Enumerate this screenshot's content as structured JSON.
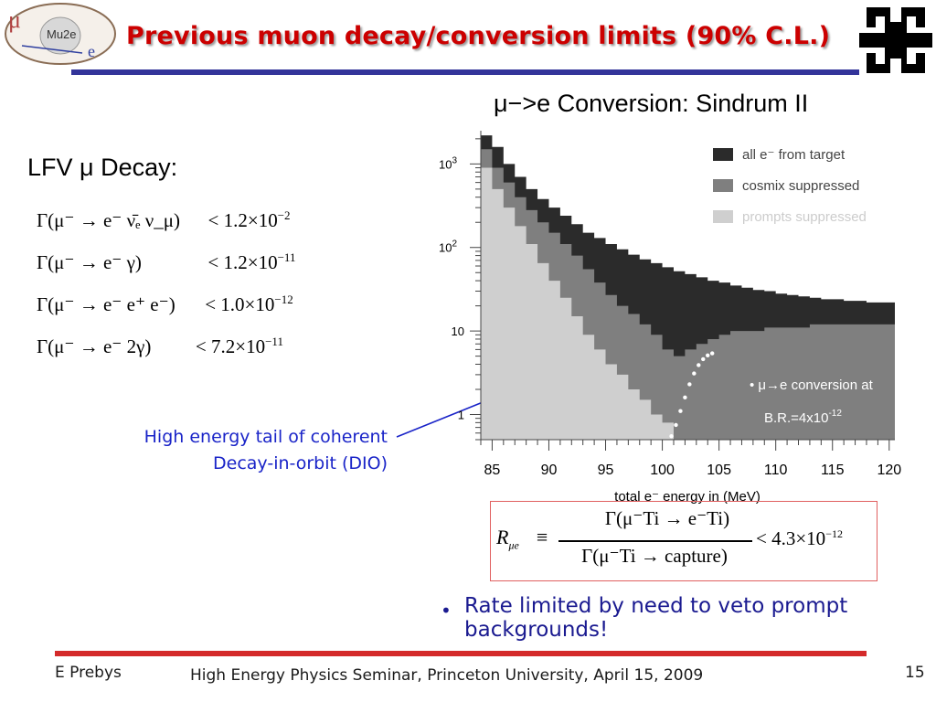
{
  "slide": {
    "title": "Previous muon decay/conversion limits (90% C.L.)",
    "logo_text": "Mu2e",
    "subtitle": "μ−>e Conversion: Sindrum II",
    "lfv_heading": "LFV μ Decay:",
    "limits": [
      {
        "process": "Γ(μ⁻ → e⁻ ν̄ₑ ν_μ)",
        "mantissa": "< 1.2×10",
        "exponent": "−2"
      },
      {
        "process": "Γ(μ⁻ → e⁻ γ)",
        "mantissa": "< 1.2×10",
        "exponent": "−11"
      },
      {
        "process": "Γ(μ⁻ → e⁻ e⁺ e⁻)",
        "mantissa": "< 1.0×10",
        "exponent": "−12"
      },
      {
        "process": "Γ(μ⁻ → e⁻ 2γ)",
        "mantissa": "< 7.2×10",
        "exponent": "−11"
      }
    ],
    "annotation_line1": "High energy tail of coherent",
    "annotation_line2": "Decay-in-orbit (DIO)",
    "formula": {
      "lhs": "R",
      "lhs_sub": "μe",
      "equiv": "≡",
      "numerator": "Γ(μ⁻Ti → e⁻Ti)",
      "denominator": "Γ(μ⁻Ti → capture)",
      "rhs_mantissa": "< 4.3×10",
      "rhs_exponent": "−12"
    },
    "bullet": "Rate limited by need to veto prompt backgrounds!",
    "footer_left": "E Prebys",
    "footer_center": "High Energy Physics Seminar, Princeton University, April 15, 2009",
    "page_number": "15",
    "colors": {
      "title": "#cc0000",
      "title_rule": "#33349a",
      "footer_rule": "#d42a2a",
      "annotation": "#1a24c8",
      "bullet": "#1a1a90"
    }
  },
  "chart_data": {
    "type": "area",
    "xlabel": "total e⁻ energy in (MeV)",
    "xlim": [
      84,
      120.5
    ],
    "x_ticks": [
      85,
      90,
      95,
      100,
      105,
      110,
      115,
      120
    ],
    "y_scale": "log",
    "ylim": [
      0.5,
      2500
    ],
    "y_tick_labels": [
      {
        "value": 1000,
        "label": "10",
        "sup": "3"
      },
      {
        "value": 100,
        "label": "10",
        "sup": "2"
      },
      {
        "value": 10,
        "label": "10",
        "sup": ""
      },
      {
        "value": 1,
        "label": "1",
        "sup": ""
      }
    ],
    "legend_position": "top-right",
    "series": [
      {
        "name": "all e⁻ from target",
        "color": "#2b2b2b",
        "points": [
          [
            84,
            2200
          ],
          [
            85,
            1600
          ],
          [
            86,
            1000
          ],
          [
            87,
            700
          ],
          [
            88,
            500
          ],
          [
            89,
            380
          ],
          [
            90,
            300
          ],
          [
            91,
            240
          ],
          [
            92,
            190
          ],
          [
            93,
            150
          ],
          [
            94,
            130
          ],
          [
            95,
            110
          ],
          [
            96,
            95
          ],
          [
            97,
            82
          ],
          [
            98,
            72
          ],
          [
            99,
            65
          ],
          [
            100,
            58
          ],
          [
            101,
            52
          ],
          [
            102,
            48
          ],
          [
            103,
            44
          ],
          [
            104,
            40
          ],
          [
            105,
            38
          ],
          [
            106,
            35
          ],
          [
            107,
            33
          ],
          [
            108,
            31
          ],
          [
            109,
            30
          ],
          [
            110,
            28
          ],
          [
            111,
            27
          ],
          [
            112,
            26
          ],
          [
            113,
            25
          ],
          [
            114,
            24
          ],
          [
            115,
            24
          ],
          [
            116,
            23
          ],
          [
            117,
            23
          ],
          [
            118,
            22
          ],
          [
            119,
            22
          ],
          [
            120,
            22
          ]
        ]
      },
      {
        "name": "cosmix suppressed",
        "color": "#7f7f7f",
        "points": [
          [
            84,
            1500
          ],
          [
            85,
            900
          ],
          [
            86,
            600
          ],
          [
            87,
            400
          ],
          [
            88,
            280
          ],
          [
            89,
            200
          ],
          [
            90,
            150
          ],
          [
            91,
            110
          ],
          [
            92,
            80
          ],
          [
            93,
            55
          ],
          [
            94,
            38
          ],
          [
            95,
            27
          ],
          [
            96,
            20
          ],
          [
            97,
            16
          ],
          [
            98,
            12
          ],
          [
            99,
            9
          ],
          [
            100,
            6
          ],
          [
            101,
            5
          ],
          [
            102,
            6
          ],
          [
            103,
            7
          ],
          [
            104,
            8
          ],
          [
            105,
            9
          ],
          [
            106,
            10
          ],
          [
            107,
            10
          ],
          [
            108,
            10
          ],
          [
            109,
            11
          ],
          [
            110,
            11
          ],
          [
            111,
            11
          ],
          [
            112,
            11
          ],
          [
            113,
            12
          ],
          [
            114,
            12
          ],
          [
            115,
            12
          ],
          [
            116,
            12
          ],
          [
            117,
            12
          ],
          [
            118,
            12
          ],
          [
            119,
            12
          ],
          [
            120,
            12
          ]
        ]
      },
      {
        "name": "prompts suppressed",
        "color": "#cfcfcf",
        "points": [
          [
            84,
            900
          ],
          [
            85,
            500
          ],
          [
            86,
            300
          ],
          [
            87,
            180
          ],
          [
            88,
            110
          ],
          [
            89,
            65
          ],
          [
            90,
            40
          ],
          [
            91,
            25
          ],
          [
            92,
            15
          ],
          [
            93,
            9
          ],
          [
            94,
            6
          ],
          [
            95,
            4
          ],
          [
            96,
            3
          ],
          [
            97,
            2
          ],
          [
            98,
            1.5
          ],
          [
            99,
            1
          ],
          [
            100,
            0.8
          ],
          [
            101,
            0.5
          ]
        ]
      }
    ],
    "signal_series": {
      "name": "μ→e conversion at B.R.=4x10⁻¹²",
      "points": [
        [
          100.8,
          0.55
        ],
        [
          101.2,
          0.75
        ],
        [
          101.6,
          1.1
        ],
        [
          102.0,
          1.6
        ],
        [
          102.4,
          2.3
        ],
        [
          102.8,
          3.1
        ],
        [
          103.2,
          3.9
        ],
        [
          103.6,
          4.6
        ],
        [
          104.0,
          5.1
        ],
        [
          104.4,
          5.4
        ]
      ]
    },
    "signal_label_line1": "μ→e conversion at",
    "signal_label_line2_prefix": "B.R.=4x10",
    "signal_label_line2_exp": "-12"
  }
}
